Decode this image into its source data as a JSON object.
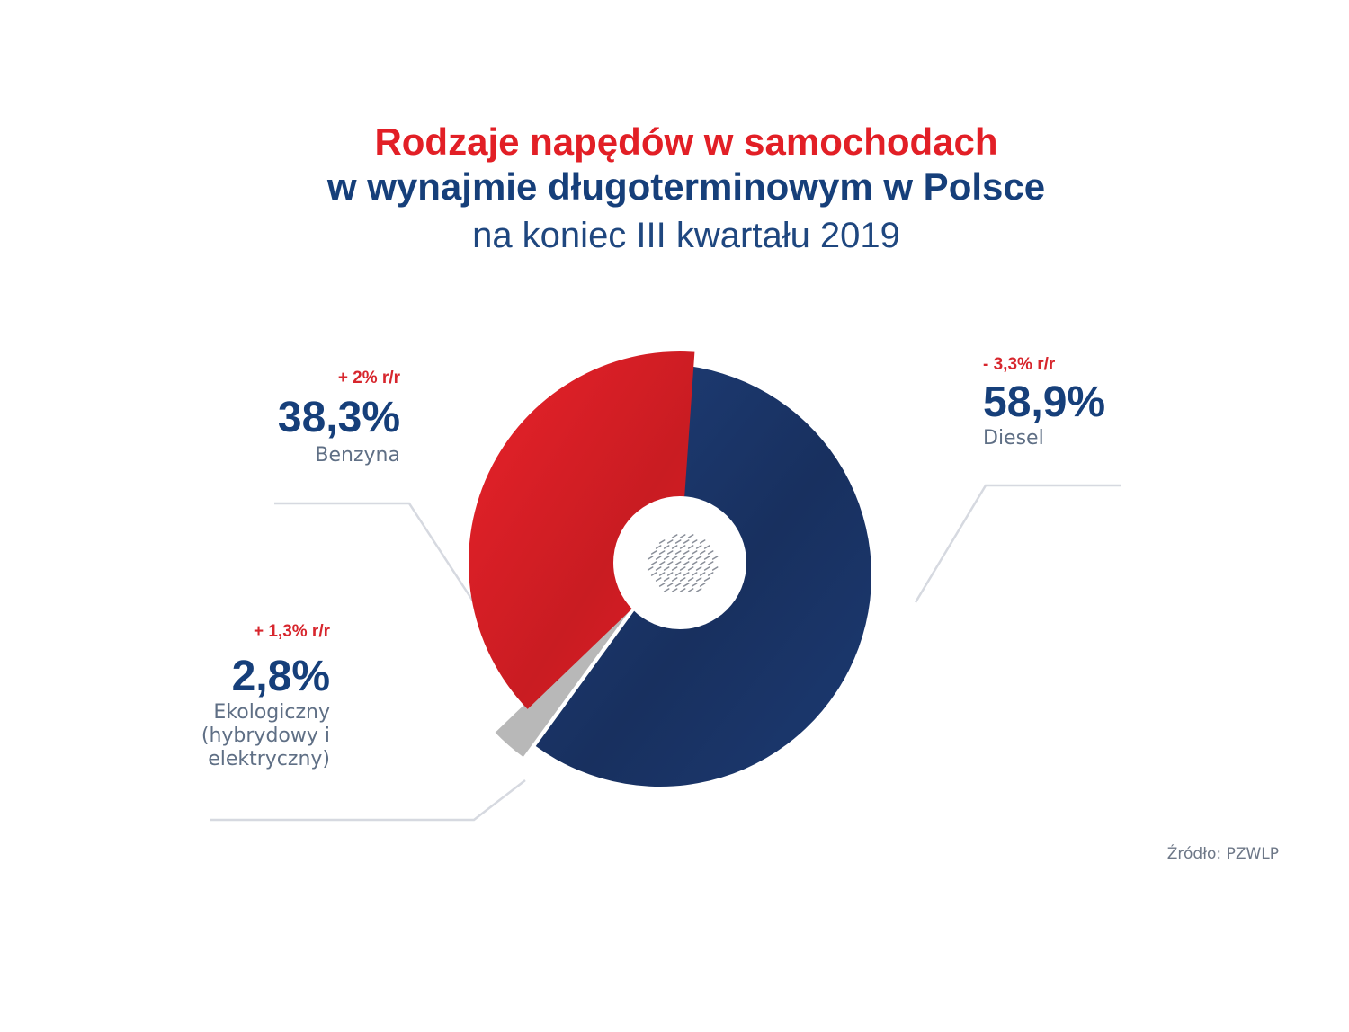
{
  "title": {
    "line1": "Rodzaje napędów w samochodach",
    "line2": "w wynajmie długoterminowym w Polsce",
    "line3": "na koniec III kwartału 2019"
  },
  "colors": {
    "diesel": "#1a3468",
    "benzyna": "#e11e26",
    "eko": "#b8b8b8",
    "leader": "#d6d9e0",
    "delta": "#d7262d",
    "value": "#163f7a"
  },
  "labels": {
    "benzyna": {
      "delta": "+ 2% r/r",
      "value": "38,3%",
      "name": "Benzyna"
    },
    "eko": {
      "delta": "+ 1,3% r/r",
      "value": "2,8%",
      "name_lines": [
        "Ekologiczny",
        "(hybrydowy i",
        "elektryczny)"
      ]
    },
    "diesel": {
      "delta": "- 3,3% r/r",
      "value": "58,9%",
      "name": "Diesel"
    }
  },
  "source": "Źródło: PZWLP",
  "center_icon": "poland-map-icon",
  "chart_data": {
    "type": "pie",
    "title": "Rodzaje napędów w samochodach w wynajmie długoterminowym w Polsce",
    "subtitle": "na koniec III kwartału 2019",
    "slices": [
      {
        "label": "Diesel",
        "value": 58.9,
        "change": "- 3,3% r/r"
      },
      {
        "label": "Ekologiczny (hybrydowy i elektryczny)",
        "value": 2.8,
        "change": "+ 1,3% r/r"
      },
      {
        "label": "Benzyna",
        "value": 38.3,
        "change": "+ 2% r/r"
      }
    ],
    "donut": true,
    "exploded_slices": [
      "Diesel",
      "Ekologiczny (hybrydowy i elektryczny)"
    ]
  }
}
